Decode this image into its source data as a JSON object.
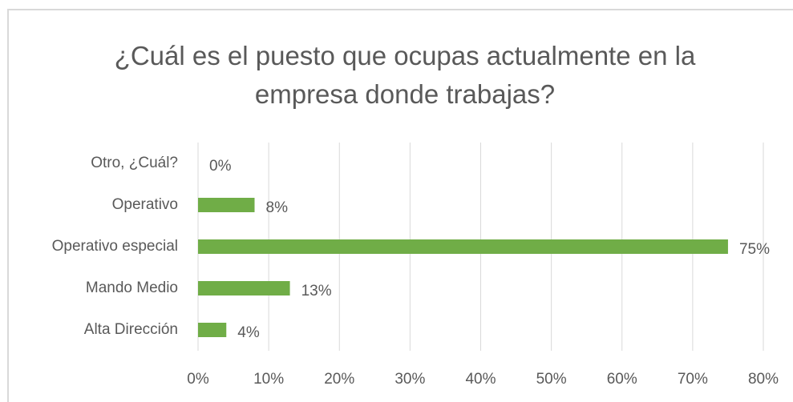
{
  "chart_data": {
    "type": "bar",
    "orientation": "horizontal",
    "title": "¿Cuál es el puesto que ocupas actualmente en la empresa donde trabajas?",
    "categories": [
      "Otro, ¿Cuál?",
      "Operativo",
      "Operativo especial",
      "Mando Medio",
      "Alta Dirección"
    ],
    "values": [
      0,
      8,
      75,
      13,
      4
    ],
    "value_labels": [
      "0%",
      "8%",
      "75%",
      "13%",
      "4%"
    ],
    "color": "#70ad47",
    "xlim": [
      0,
      80
    ],
    "xticks": [
      {
        "value": 0,
        "label": "0%"
      },
      {
        "value": 10,
        "label": "10%"
      },
      {
        "value": 20,
        "label": "20%"
      },
      {
        "value": 30,
        "label": "30%"
      },
      {
        "value": 40,
        "label": "40%"
      },
      {
        "value": 50,
        "label": "50%"
      },
      {
        "value": 60,
        "label": "60%"
      },
      {
        "value": 70,
        "label": "70%"
      },
      {
        "value": 80,
        "label": "80%"
      }
    ],
    "grid": true
  }
}
